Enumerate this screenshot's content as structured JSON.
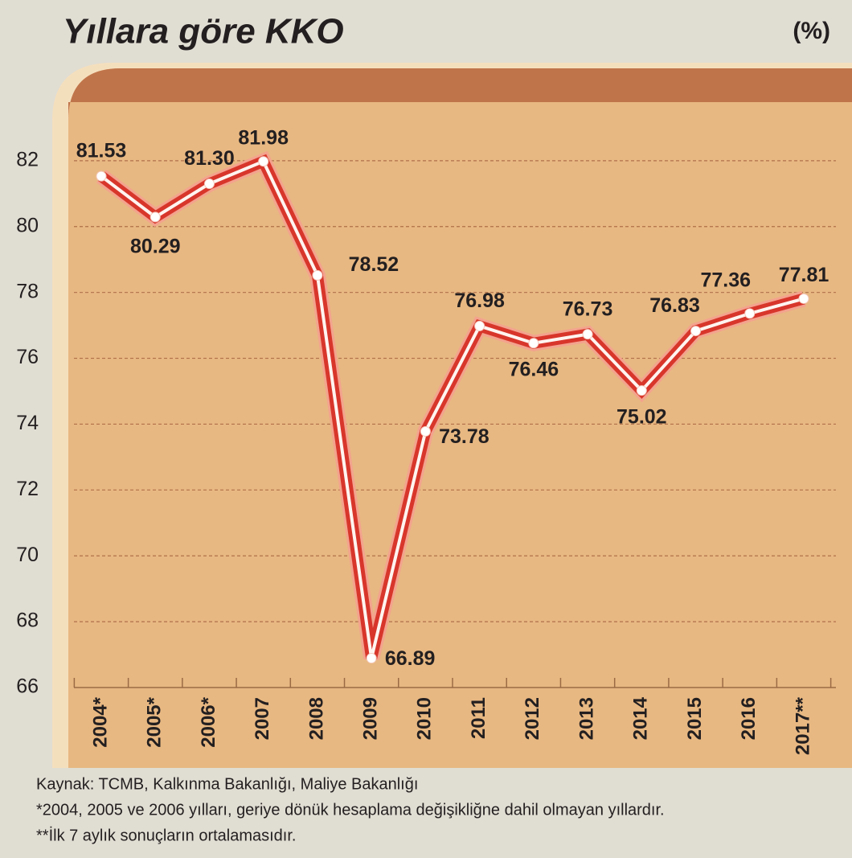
{
  "chart_data": {
    "type": "line",
    "title": "Yıllara göre KKO",
    "unit": "(%)",
    "categories": [
      "2004*",
      "2005*",
      "2006*",
      "2007",
      "2008",
      "2009",
      "2010",
      "2011",
      "2012",
      "2013",
      "2014",
      "2015",
      "2016",
      "2017**"
    ],
    "values": [
      81.53,
      80.29,
      81.3,
      81.98,
      78.52,
      66.89,
      73.78,
      76.98,
      76.46,
      76.73,
      75.02,
      76.83,
      77.36,
      77.81
    ],
    "value_labels": [
      "81.53",
      "80.29",
      "81.30",
      "81.98",
      "78.52",
      "66.89",
      "73.78",
      "76.98",
      "76.46",
      "76.73",
      "75.02",
      "76.83",
      "77.36",
      "77.81"
    ],
    "color": "#d8362b",
    "ylim": [
      66,
      84
    ],
    "yticks": [
      66,
      68,
      70,
      72,
      74,
      76,
      78,
      80,
      82
    ],
    "grid": true,
    "notes": [
      "Kaynak: TCMB, Kalkınma Bakanlığı, Maliye Bakanlığı",
      "*2004, 2005 ve 2006 yılları, geriye dönük hesaplama değişikliğne dahil olmayan yıllardır.",
      "**İlk 7 aylık sonuçların ortalamasıdır."
    ]
  }
}
